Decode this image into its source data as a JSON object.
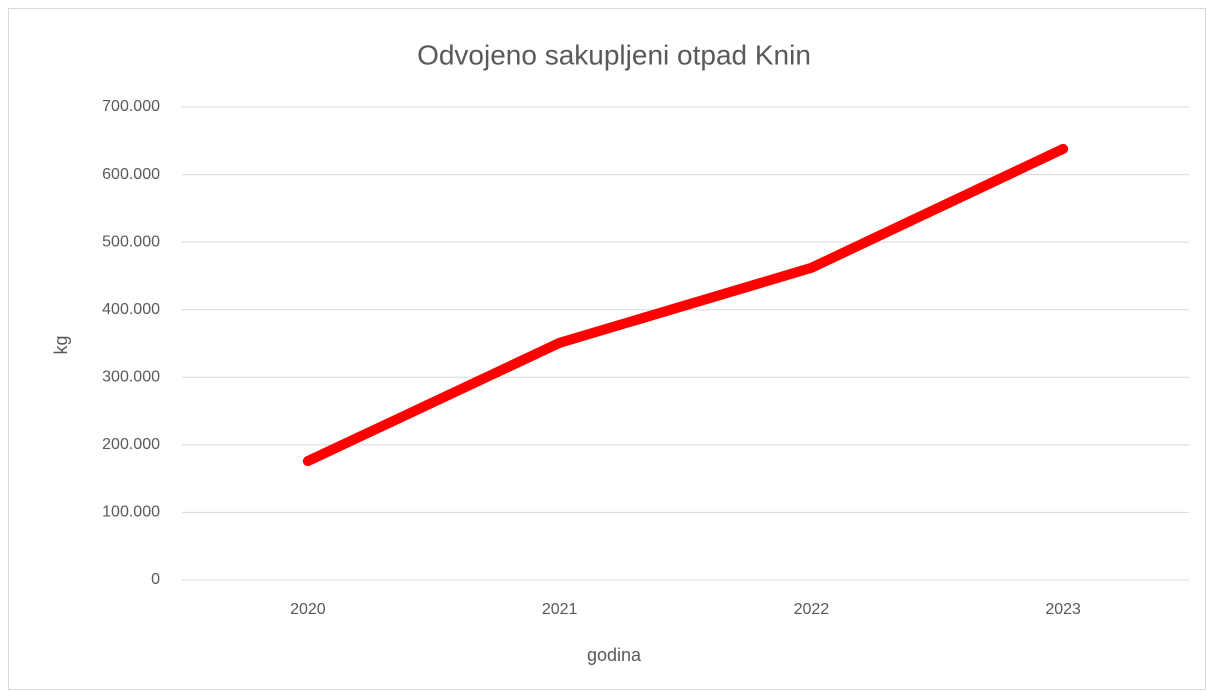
{
  "chart_data": {
    "type": "line",
    "title": "Odvojeno sakupljeni otpad Knin",
    "x_label": "godina",
    "y_label": "kg",
    "categories": [
      "2020",
      "2021",
      "2022",
      "2023"
    ],
    "series": [
      {
        "name": "Odvojeno sakupljeni otpad",
        "color": "#ff0000",
        "values": [
          176000,
          351000,
          462000,
          638000
        ]
      }
    ],
    "ylim": [
      0,
      700000
    ],
    "yticks": [
      0,
      {
        "value": 100000,
        "label": "100.000"
      },
      {
        "value": 200000,
        "label": "200.000"
      },
      {
        "value": 300000,
        "label": "300.000"
      },
      {
        "value": 400000,
        "label": "400.000"
      },
      {
        "value": 500000,
        "label": "500.000"
      },
      {
        "value": 600000,
        "label": "600.000"
      },
      {
        "value": 700000,
        "label": "700.000"
      }
    ],
    "grid": true
  }
}
